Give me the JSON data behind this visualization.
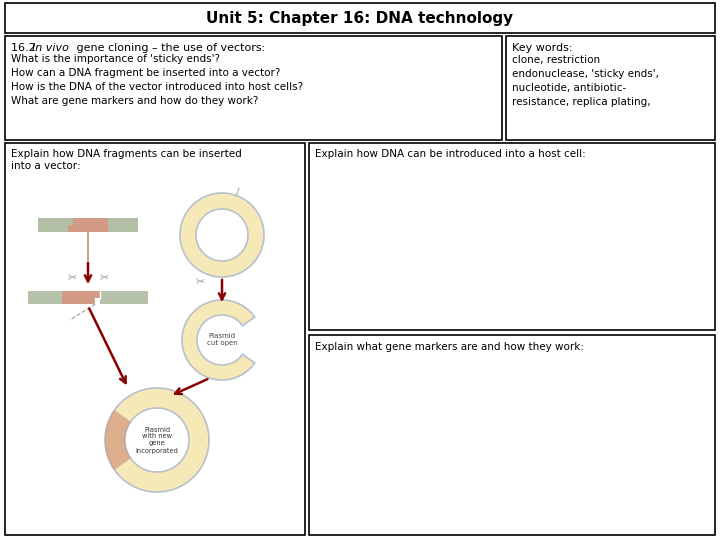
{
  "title": "Unit 5: Chapter 16: DNA technology",
  "title_fontsize": 11,
  "box1_title_bold": "16.2 ",
  "box1_title_italic": "In vivo",
  "box1_title_rest": " gene cloning – the use of vectors:",
  "box1_lines": [
    "What is the importance of 'sticky ends'?",
    "How can a DNA fragment be inserted into a vector?",
    "How is the DNA of the vector introduced into host cells?",
    "What are gene markers and how do they work?"
  ],
  "box2_title": "Key words:",
  "box2_lines": [
    "clone, restriction",
    "endonuclease, 'sticky ends',",
    "nucleotide, antibiotic-",
    "resistance, replica plating,"
  ],
  "box3_title": "Explain how DNA fragments can be inserted\ninto a vector:",
  "box4_title": "Explain how DNA can be introduced into a host cell:",
  "box5_title": "Explain what gene markers are and how they work:",
  "bg_color": "#ffffff",
  "border_color": "#000000",
  "text_color": "#000000",
  "plasmid_fill": "#f5e9b8",
  "plasmid_ring": "#b8c0cc",
  "dna_salmon": "#cc8870",
  "dna_green": "#98a888",
  "arrow_color": "#880000",
  "scissors_color": "#999999",
  "line_fade": "#c09080"
}
